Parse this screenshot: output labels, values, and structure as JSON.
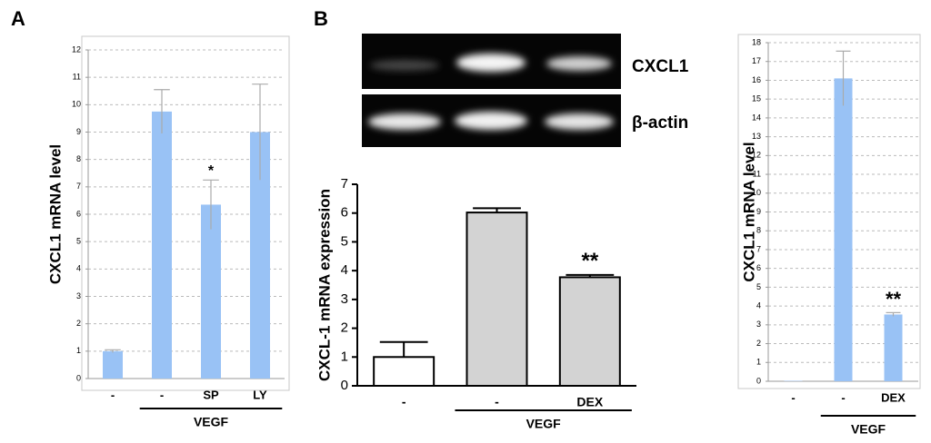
{
  "panels": [
    "A",
    "B"
  ],
  "gel": {
    "labels": [
      "CXCL1",
      "β-actin"
    ]
  },
  "chart_data": [
    {
      "type": "bar",
      "ylabel": "CXCL1 mRNA level",
      "categories": [
        "-",
        "-",
        "SP",
        "LY"
      ],
      "group_label": "VEGF",
      "values": [
        1.0,
        9.75,
        6.35,
        9.0
      ],
      "errors": [
        0.05,
        0.8,
        0.9,
        1.75
      ],
      "significance": [
        null,
        null,
        "*",
        null
      ],
      "color": "#99c2f5",
      "error_direction": "both",
      "ylim": [
        0,
        12
      ],
      "yticks": [
        0,
        1,
        2,
        3,
        4,
        5,
        6,
        7,
        8,
        9,
        10,
        11,
        12
      ],
      "grid": true
    },
    {
      "type": "bar",
      "ylabel": "CXCL-1 mRNA expression",
      "categories": [
        "-",
        "-",
        "DEX"
      ],
      "group_label": "VEGF",
      "values": [
        1.0,
        6.02,
        3.77
      ],
      "errors": [
        0.52,
        0.15,
        0.08
      ],
      "significance": [
        null,
        null,
        "**"
      ],
      "colors": [
        "#ffffff",
        "#d3d3d3",
        "#d3d3d3"
      ],
      "edgecolor": "#000000",
      "error_direction": "up",
      "ylim": [
        0,
        7
      ],
      "yticks": [
        0,
        1,
        2,
        3,
        4,
        5,
        6,
        7
      ],
      "grid": false
    },
    {
      "type": "bar",
      "ylabel": "CXCL1 mRNA level",
      "categories": [
        "-",
        "-",
        "DEX"
      ],
      "group_label": "VEGF",
      "values": [
        0.02,
        16.1,
        3.55
      ],
      "errors": [
        null,
        1.45,
        0.1
      ],
      "significance": [
        null,
        null,
        "**"
      ],
      "color": "#99c2f5",
      "error_direction": "both",
      "ylim": [
        0,
        18
      ],
      "yticks": [
        0,
        1,
        2,
        3,
        4,
        5,
        6,
        7,
        8,
        9,
        10,
        11,
        12,
        13,
        14,
        15,
        16,
        17,
        18
      ],
      "grid": true
    }
  ]
}
